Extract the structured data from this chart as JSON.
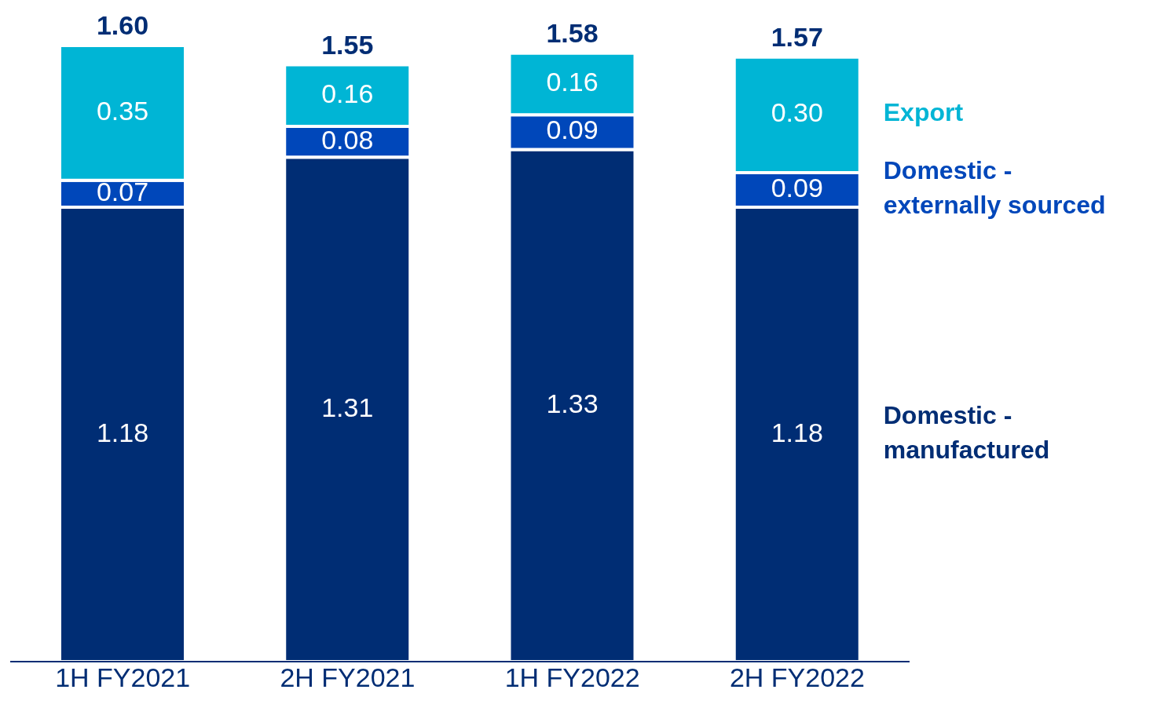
{
  "chart_data": {
    "type": "bar",
    "stacked": true,
    "categories": [
      "1H FY2021",
      "2H FY2021",
      "1H FY2022",
      "2H FY2022"
    ],
    "series": [
      {
        "name": "Domestic - manufactured",
        "color": "#002d74",
        "values": [
          1.18,
          1.31,
          1.33,
          1.18
        ],
        "value_labels": [
          "1.18",
          "1.31",
          "1.33",
          "1.18"
        ]
      },
      {
        "name": "Domestic - externally sourced",
        "color": "#0047ba",
        "values": [
          0.07,
          0.08,
          0.09,
          0.09
        ],
        "value_labels": [
          "0.07",
          "0.08",
          "0.09",
          "0.09"
        ]
      },
      {
        "name": "Export",
        "color": "#00b5d5",
        "values": [
          0.35,
          0.16,
          0.16,
          0.3
        ],
        "value_labels": [
          "0.35",
          "0.16",
          "0.16",
          "0.30"
        ]
      }
    ],
    "totals": [
      "1.60",
      "1.55",
      "1.58",
      "1.57"
    ]
  }
}
